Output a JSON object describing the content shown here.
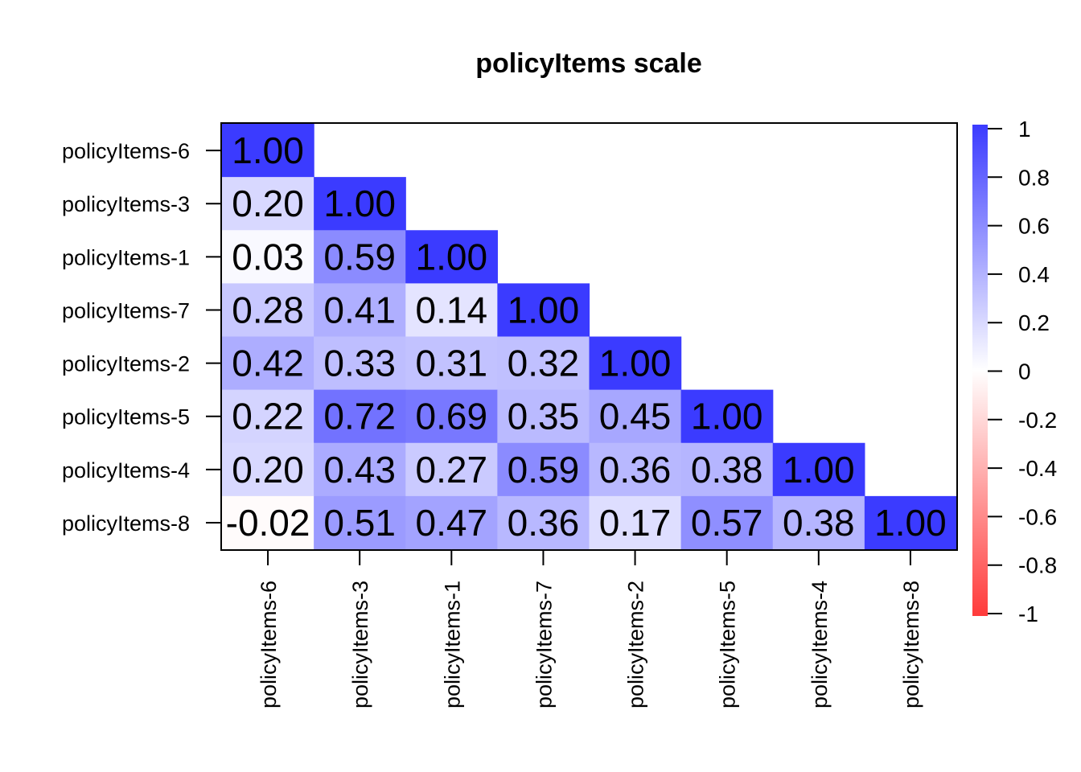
{
  "chart_data": {
    "type": "heatmap",
    "title": "policyItems scale",
    "variables": [
      "policyItems-6",
      "policyItems-3",
      "policyItems-1",
      "policyItems-7",
      "policyItems-2",
      "policyItems-5",
      "policyItems-4",
      "policyItems-8"
    ],
    "matrix": [
      [
        1.0
      ],
      [
        0.2,
        1.0
      ],
      [
        0.03,
        0.59,
        1.0
      ],
      [
        0.28,
        0.41,
        0.14,
        1.0
      ],
      [
        0.42,
        0.33,
        0.31,
        0.32,
        1.0
      ],
      [
        0.22,
        0.72,
        0.69,
        0.35,
        0.45,
        1.0
      ],
      [
        0.2,
        0.43,
        0.27,
        0.59,
        0.36,
        0.38,
        1.0
      ],
      [
        -0.02,
        0.51,
        0.47,
        0.36,
        0.17,
        0.57,
        0.38,
        1.0
      ]
    ],
    "cell_labels": [
      [
        "1.00"
      ],
      [
        "0.20",
        "1.00"
      ],
      [
        "0.03",
        "0.59",
        "1.00"
      ],
      [
        "0.28",
        "0.41",
        "0.14",
        "1.00"
      ],
      [
        "0.42",
        "0.33",
        "0.31",
        "0.32",
        "1.00"
      ],
      [
        "0.22",
        "0.72",
        "0.69",
        "0.35",
        "0.45",
        "1.00"
      ],
      [
        "0.20",
        "0.43",
        "0.27",
        "0.59",
        "0.36",
        "0.38",
        "1.00"
      ],
      [
        "-0.02",
        "0.51",
        "0.47",
        "0.36",
        "0.17",
        "0.57",
        "0.38",
        "1.00"
      ]
    ],
    "colorbar": {
      "range": [
        -1,
        1
      ],
      "tick_labels": [
        "1",
        "0.8",
        "0.6",
        "0.4",
        "0.2",
        "0",
        "-0.2",
        "-0.4",
        "-0.6",
        "-0.8",
        "-1"
      ],
      "tick_values": [
        1,
        0.8,
        0.6,
        0.4,
        0.2,
        0,
        -0.2,
        -0.4,
        -0.6,
        -0.8,
        -1
      ],
      "color_positive": "#3B3BFF",
      "color_zero": "#FFFFFF",
      "color_negative": "#FF3B3B"
    },
    "layout": "lower-triangle",
    "grid": false
  }
}
